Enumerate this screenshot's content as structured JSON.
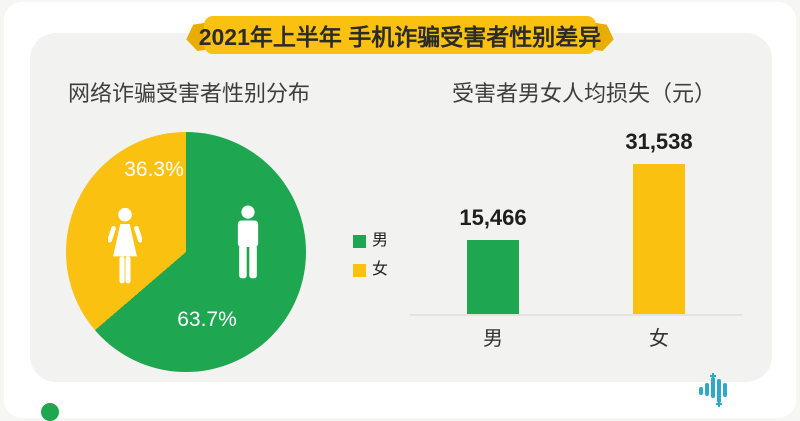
{
  "banner": {
    "title": "2021年上半年 手机诈骗受害者性别差异"
  },
  "sections": {
    "pie_title": "网络诈骗受害者性别分布",
    "bar_title": "受害者男女人均损失（元）"
  },
  "legend": [
    {
      "label": "男",
      "color": "#1ea651"
    },
    {
      "label": "女",
      "color": "#fbc110"
    }
  ],
  "colors": {
    "male_green": "#1ea651",
    "female_gold": "#fbc110",
    "banner_gold": "#fbc110",
    "banner_wing_gold": "#e9ad00",
    "banner_text": "#2b2b2b",
    "panel_bg": "#f2f2f0",
    "logo_teal": "#2fa8c8"
  },
  "icons": {
    "male": "male-person-icon",
    "female": "female-person-icon",
    "footer": "analytics-bars-logo"
  },
  "chart_data": [
    {
      "type": "pie",
      "title": "网络诈骗受害者性别分布",
      "labels": [
        "男",
        "女"
      ],
      "values": [
        63.7,
        36.3
      ],
      "unit": "%",
      "slice_labels": [
        "63.7%",
        "36.3%"
      ],
      "colors": [
        "#1ea651",
        "#fbc110"
      ],
      "start_angle_deg": 0,
      "direction": "clockwise",
      "legend_position": "right",
      "annotations": [
        "white male pictogram inside green slice",
        "white female pictogram inside gold slice"
      ]
    },
    {
      "type": "bar",
      "title": "受害者男女人均损失（元）",
      "categories": [
        "男",
        "女"
      ],
      "values": [
        15466,
        31538
      ],
      "value_labels": [
        "15,466",
        "31,538"
      ],
      "colors": [
        "#1ea651",
        "#fbc110"
      ],
      "xlabel": "",
      "ylabel": "",
      "ylim": [
        0,
        31538
      ],
      "grid": false,
      "legend_position": "left"
    }
  ]
}
